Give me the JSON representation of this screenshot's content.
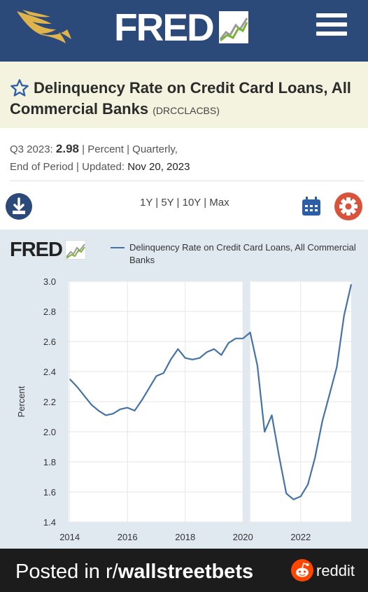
{
  "header": {
    "logo_text": "FRED",
    "brand_color": "#2b4a7a"
  },
  "series": {
    "title": "Delinquency Rate on Credit Card Loans, All Commercial Banks",
    "id": "(DRCCLACBS)"
  },
  "meta": {
    "period": "Q3 2023:",
    "value": "2.98",
    "units": "| Percent | Quarterly,",
    "line2_prefix": "End of Period | Updated:",
    "updated": "Nov 20, 2023"
  },
  "toolbar": {
    "ranges": [
      "1Y",
      "5Y",
      "10Y",
      "Max"
    ],
    "separator": " | "
  },
  "chart_data": {
    "type": "line",
    "logo_text": "FRED",
    "ylabel": "Percent",
    "ylim": [
      1.4,
      3.0
    ],
    "yticks": [
      "3.0",
      "2.8",
      "2.6",
      "2.4",
      "2.2",
      "2.0",
      "1.8",
      "1.6",
      "1.4"
    ],
    "xticks": [
      "2014",
      "2016",
      "2018",
      "2020",
      "2022"
    ],
    "xlim": [
      2013.96,
      2023.75
    ],
    "recessions": [
      [
        2020.0,
        2020.25
      ]
    ],
    "grid": true,
    "legend": "top",
    "series": [
      {
        "name": "Delinquency Rate on Credit Card Loans, All Commercial Banks",
        "color": "#4572a7",
        "points": [
          [
            2014.0,
            2.35
          ],
          [
            2014.25,
            2.3
          ],
          [
            2014.5,
            2.24
          ],
          [
            2014.75,
            2.18
          ],
          [
            2015.0,
            2.14
          ],
          [
            2015.25,
            2.11
          ],
          [
            2015.5,
            2.12
          ],
          [
            2015.75,
            2.15
          ],
          [
            2016.0,
            2.16
          ],
          [
            2016.25,
            2.14
          ],
          [
            2016.5,
            2.21
          ],
          [
            2016.75,
            2.29
          ],
          [
            2017.0,
            2.37
          ],
          [
            2017.25,
            2.39
          ],
          [
            2017.5,
            2.48
          ],
          [
            2017.75,
            2.55
          ],
          [
            2018.0,
            2.49
          ],
          [
            2018.25,
            2.48
          ],
          [
            2018.5,
            2.49
          ],
          [
            2018.75,
            2.53
          ],
          [
            2019.0,
            2.55
          ],
          [
            2019.25,
            2.51
          ],
          [
            2019.5,
            2.59
          ],
          [
            2019.75,
            2.62
          ],
          [
            2020.0,
            2.62
          ],
          [
            2020.25,
            2.66
          ],
          [
            2020.5,
            2.44
          ],
          [
            2020.75,
            2.0
          ],
          [
            2021.0,
            2.11
          ],
          [
            2021.25,
            1.84
          ],
          [
            2021.5,
            1.59
          ],
          [
            2021.75,
            1.55
          ],
          [
            2022.0,
            1.57
          ],
          [
            2022.25,
            1.65
          ],
          [
            2022.5,
            1.83
          ],
          [
            2022.75,
            2.07
          ],
          [
            2023.0,
            2.25
          ],
          [
            2023.25,
            2.43
          ],
          [
            2023.5,
            2.77
          ],
          [
            2023.75,
            2.98
          ]
        ]
      }
    ]
  },
  "footer": {
    "posted_prefix": "Posted in r/",
    "subreddit": "wallstreetbets",
    "brand": "reddit"
  }
}
